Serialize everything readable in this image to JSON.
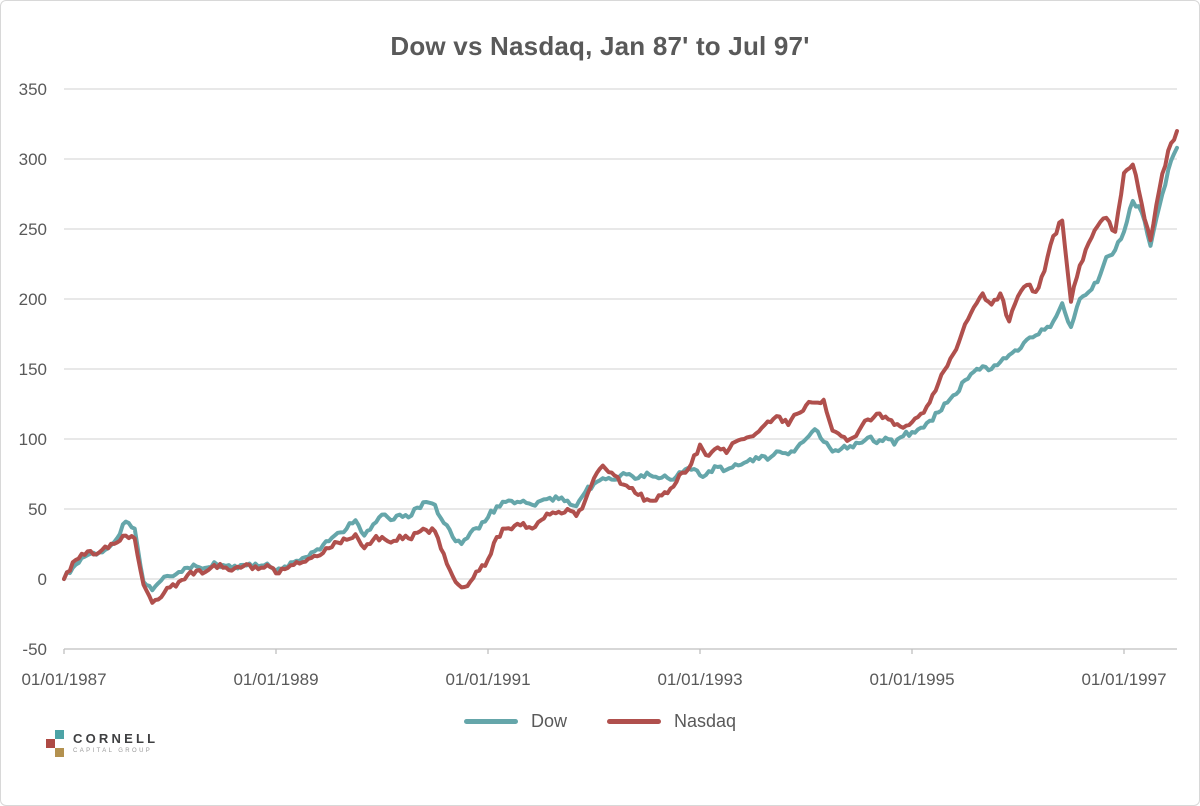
{
  "title": "Dow vs Nasdaq, Jan 87' to Jul 97'",
  "chart_data": {
    "type": "line",
    "title": "Dow vs Nasdaq, Jan 87' to Jul 97'",
    "xlabel": "",
    "ylabel": "",
    "grid": "horizontal",
    "legend_position": "bottom-center",
    "x_start": "01/01/1987",
    "x_end": "07/01/1997",
    "x_tick_labels": [
      "01/01/1987",
      "01/01/1989",
      "01/01/1991",
      "01/01/1993",
      "01/01/1995",
      "01/01/1997"
    ],
    "x_tick_month_indices": [
      0,
      24,
      48,
      72,
      96,
      120
    ],
    "total_months": 126,
    "y_ticks": [
      350,
      300,
      250,
      200,
      150,
      100,
      50,
      0,
      -50
    ],
    "ylim": [
      -50,
      350
    ],
    "series": [
      {
        "name": "Dow",
        "color": "#65A6AA",
        "monthly_values": [
          0,
          8,
          15,
          18,
          19,
          22,
          29,
          41,
          36,
          -2,
          -8,
          -1,
          2,
          5,
          8,
          9,
          8,
          12,
          10,
          8,
          10,
          11,
          9,
          11,
          6,
          9,
          12,
          15,
          19,
          21,
          27,
          33,
          36,
          42,
          31,
          39,
          46,
          42,
          46,
          44,
          51,
          55,
          53,
          40,
          30,
          25,
          33,
          36,
          44,
          52,
          55,
          54,
          56,
          53,
          56,
          58,
          57,
          56,
          52,
          62,
          68,
          72,
          71,
          74,
          75,
          72,
          76,
          73,
          74,
          71,
          76,
          78,
          74,
          77,
          80,
          78,
          82,
          83,
          84,
          88,
          87,
          91,
          89,
          94,
          100,
          107,
          98,
          91,
          93,
          95,
          97,
          101,
          97,
          101,
          96,
          102,
          105,
          108,
          113,
          119,
          126,
          132,
          142,
          148,
          152,
          150,
          155,
          160,
          163,
          171,
          174,
          178,
          184,
          197,
          180,
          200,
          205,
          212,
          230,
          235,
          248,
          270,
          262,
          238,
          266,
          292,
          308
        ]
      },
      {
        "name": "Nasdaq",
        "color": "#B0504D",
        "monthly_values": [
          0,
          12,
          18,
          20,
          19,
          22,
          26,
          31,
          29,
          -4,
          -17,
          -13,
          -6,
          -2,
          3,
          6,
          5,
          10,
          8,
          6,
          8,
          10,
          7,
          10,
          4,
          7,
          10,
          12,
          15,
          17,
          22,
          26,
          28,
          32,
          22,
          28,
          30,
          26,
          31,
          29,
          33,
          35,
          34,
          18,
          2,
          -6,
          -2,
          6,
          14,
          30,
          36,
          38,
          40,
          36,
          42,
          46,
          48,
          50,
          45,
          56,
          72,
          81,
          76,
          68,
          65,
          60,
          57,
          56,
          62,
          66,
          76,
          82,
          96,
          88,
          94,
          90,
          98,
          100,
          102,
          108,
          112,
          116,
          110,
          118,
          124,
          126,
          128,
          106,
          102,
          100,
          106,
          114,
          118,
          116,
          110,
          108,
          112,
          118,
          126,
          140,
          152,
          164,
          182,
          194,
          204,
          196,
          204,
          184,
          202,
          210,
          205,
          220,
          245,
          256,
          198,
          224,
          240,
          252,
          258,
          248,
          290,
          296,
          268,
          242,
          278,
          306,
          320
        ]
      }
    ],
    "axis_color": "#bfbfbf",
    "gridline_color": "#d9d9d9",
    "tick_label_color": "#595959"
  },
  "legend": {
    "items": [
      {
        "label": "Dow",
        "color": "#65A6AA"
      },
      {
        "label": "Nasdaq",
        "color": "#B0504D"
      }
    ]
  },
  "logo": {
    "name": "CORNELL",
    "subtitle": "CAPITAL GROUP",
    "square_colors": [
      "#4CA3A6",
      "#AE4A44",
      "#B3914F"
    ]
  }
}
